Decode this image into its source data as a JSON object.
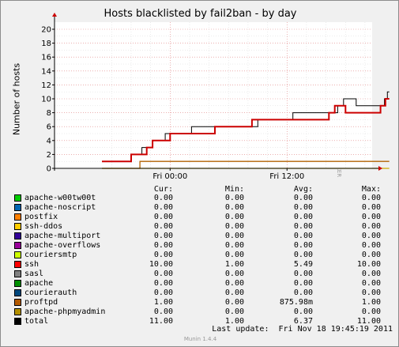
{
  "chart_data": {
    "type": "line",
    "title": "Hosts blacklisted by fail2ban - by day",
    "ylabel": "Number of hosts",
    "xlabel": "",
    "ylim": [
      0,
      20
    ],
    "yticks": [
      0,
      2,
      4,
      6,
      8,
      10,
      12,
      14,
      16,
      18,
      20
    ],
    "xlim": [
      "Thu 17:00",
      "Fri 19:00"
    ],
    "xticks": [
      {
        "label": "Fri 00:00",
        "hour": 7
      },
      {
        "label": "Fri 12:00",
        "hour": 19
      }
    ],
    "grid": true,
    "series": [
      {
        "name": "total",
        "color": "#000000",
        "points": [
          [
            0,
            1
          ],
          [
            3.0,
            1
          ],
          [
            3.0,
            2
          ],
          [
            4.1,
            2
          ],
          [
            4.1,
            3
          ],
          [
            5.2,
            3
          ],
          [
            5.2,
            4
          ],
          [
            6.5,
            4
          ],
          [
            6.5,
            5
          ],
          [
            9.2,
            5
          ],
          [
            9.2,
            6
          ],
          [
            16.0,
            6
          ],
          [
            16.0,
            7
          ],
          [
            19.6,
            7
          ],
          [
            19.6,
            8
          ],
          [
            24.2,
            8
          ],
          [
            24.2,
            9
          ],
          [
            24.8,
            9
          ],
          [
            24.8,
            10
          ],
          [
            26.1,
            10
          ],
          [
            26.1,
            9
          ],
          [
            29.0,
            9
          ],
          [
            29.0,
            10
          ],
          [
            29.3,
            10
          ],
          [
            29.3,
            11
          ],
          [
            29.5,
            11
          ]
        ]
      },
      {
        "name": "ssh",
        "color": "#cc0000",
        "points": [
          [
            0,
            1
          ],
          [
            3.0,
            1
          ],
          [
            3.0,
            2
          ],
          [
            4.6,
            2
          ],
          [
            4.6,
            3
          ],
          [
            5.2,
            3
          ],
          [
            5.2,
            4
          ],
          [
            7.0,
            4
          ],
          [
            7.0,
            5
          ],
          [
            11.6,
            5
          ],
          [
            11.6,
            6
          ],
          [
            15.4,
            6
          ],
          [
            15.4,
            7
          ],
          [
            23.3,
            7
          ],
          [
            23.3,
            8
          ],
          [
            23.9,
            8
          ],
          [
            23.9,
            9
          ],
          [
            25.0,
            9
          ],
          [
            25.0,
            8
          ],
          [
            28.6,
            8
          ],
          [
            28.6,
            9
          ],
          [
            29.1,
            9
          ],
          [
            29.1,
            10
          ],
          [
            29.5,
            10
          ]
        ]
      },
      {
        "name": "proftpd",
        "color": "#b26200",
        "points": [
          [
            0,
            0
          ],
          [
            3.9,
            0
          ],
          [
            3.9,
            1
          ],
          [
            29.5,
            1
          ]
        ]
      },
      {
        "name": "apache-phpmyadmin",
        "color": "#ccaa00",
        "points": [
          [
            0,
            0
          ],
          [
            29.5,
            0
          ]
        ]
      }
    ]
  },
  "watermark": "RRDTOOL / TOBI OETIKER",
  "legend": {
    "headers": {
      "cur": "Cur:",
      "min": "Min:",
      "avg": "Avg:",
      "max": "Max:"
    },
    "rows": [
      {
        "name": "apache-w00tw00t",
        "color": "#00cc00",
        "cur": "0.00",
        "min": "0.00",
        "avg": "0.00",
        "max": "0.00"
      },
      {
        "name": "apache-noscript",
        "color": "#0066b3",
        "cur": "0.00",
        "min": "0.00",
        "avg": "0.00",
        "max": "0.00"
      },
      {
        "name": "postfix",
        "color": "#ff8000",
        "cur": "0.00",
        "min": "0.00",
        "avg": "0.00",
        "max": "0.00"
      },
      {
        "name": "ssh-ddos",
        "color": "#ffcc00",
        "cur": "0.00",
        "min": "0.00",
        "avg": "0.00",
        "max": "0.00"
      },
      {
        "name": "apache-multiport",
        "color": "#330099",
        "cur": "0.00",
        "min": "0.00",
        "avg": "0.00",
        "max": "0.00"
      },
      {
        "name": "apache-overflows",
        "color": "#990099",
        "cur": "0.00",
        "min": "0.00",
        "avg": "0.00",
        "max": "0.00"
      },
      {
        "name": "couriersmtp",
        "color": "#ccff00",
        "cur": "0.00",
        "min": "0.00",
        "avg": "0.00",
        "max": "0.00"
      },
      {
        "name": "ssh",
        "color": "#ff0000",
        "cur": "10.00",
        "min": "1.00",
        "avg": "5.49",
        "max": "10.00"
      },
      {
        "name": "sasl",
        "color": "#808080",
        "cur": "0.00",
        "min": "0.00",
        "avg": "0.00",
        "max": "0.00"
      },
      {
        "name": "apache",
        "color": "#008f00",
        "cur": "0.00",
        "min": "0.00",
        "avg": "0.00",
        "max": "0.00"
      },
      {
        "name": "courierauth",
        "color": "#00487d",
        "cur": "0.00",
        "min": "0.00",
        "avg": "0.00",
        "max": "0.00"
      },
      {
        "name": "proftpd",
        "color": "#b35a00",
        "cur": "1.00",
        "min": "0.00",
        "avg": "875.98m",
        "max": "1.00"
      },
      {
        "name": "apache-phpmyadmin",
        "color": "#b38f00",
        "cur": "0.00",
        "min": "0.00",
        "avg": "0.00",
        "max": "0.00"
      },
      {
        "name": "total",
        "color": "#000000",
        "cur": "11.00",
        "min": "1.00",
        "avg": "6.37",
        "max": "11.00"
      }
    ]
  },
  "footer": {
    "last_update": "Last update:  Fri Nov 18 19:45:19 2011",
    "version": "Munin 1.4.4"
  }
}
